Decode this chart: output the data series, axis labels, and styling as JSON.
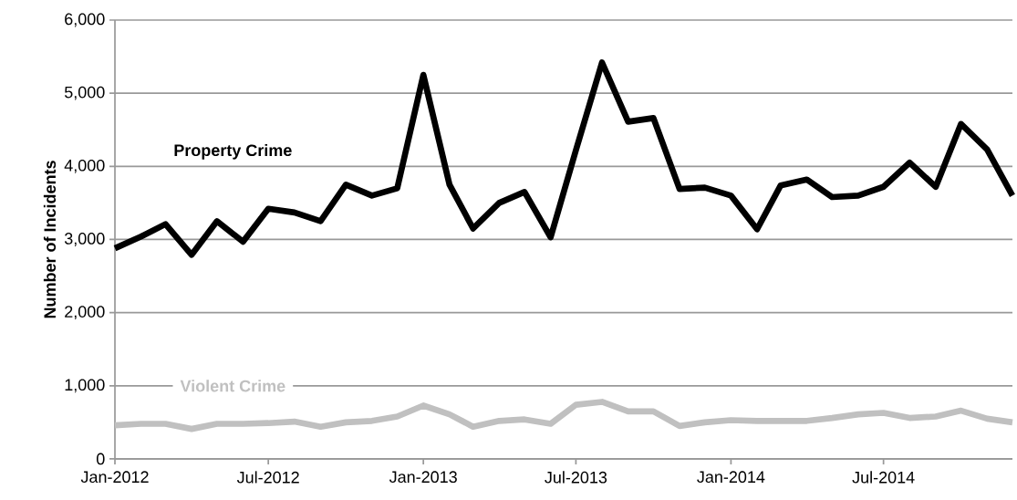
{
  "chart_data": {
    "type": "line",
    "ylabel": "Number of Incidents",
    "x": [
      "2012-01",
      "2012-02",
      "2012-03",
      "2012-04",
      "2012-05",
      "2012-06",
      "2012-07",
      "2012-08",
      "2012-09",
      "2012-10",
      "2012-11",
      "2012-12",
      "2013-01",
      "2013-02",
      "2013-03",
      "2013-04",
      "2013-05",
      "2013-06",
      "2013-07",
      "2013-08",
      "2013-09",
      "2013-10",
      "2013-11",
      "2013-12",
      "2014-01",
      "2014-02",
      "2014-03",
      "2014-04",
      "2014-05",
      "2014-06",
      "2014-07",
      "2014-08",
      "2014-09",
      "2014-10",
      "2014-11",
      "2014-12"
    ],
    "series": [
      {
        "name": "Property Crime",
        "color": "#000000",
        "values": [
          2880,
          3040,
          3210,
          2790,
          3250,
          2970,
          3420,
          3370,
          3250,
          3750,
          3600,
          3700,
          5250,
          3750,
          3150,
          3500,
          3650,
          3030,
          4220,
          5420,
          4610,
          4660,
          3690,
          3710,
          3600,
          3140,
          3740,
          3820,
          3580,
          3600,
          3720,
          4050,
          3720,
          4580,
          4230,
          3600
        ]
      },
      {
        "name": "Violent Crime",
        "color": "#c0c0c0",
        "values": [
          460,
          480,
          480,
          410,
          480,
          480,
          490,
          510,
          440,
          500,
          520,
          580,
          730,
          610,
          440,
          520,
          540,
          480,
          740,
          780,
          650,
          650,
          450,
          500,
          530,
          520,
          520,
          520,
          560,
          610,
          630,
          560,
          580,
          660,
          550,
          500
        ]
      }
    ],
    "xlim": [
      "2012-01",
      "2014-12"
    ],
    "xticks": [
      {
        "value": "2012-01",
        "label": "Jan-2012"
      },
      {
        "value": "2012-07",
        "label": "Jul-2012"
      },
      {
        "value": "2013-01",
        "label": "Jan-2013"
      },
      {
        "value": "2013-07",
        "label": "Jul-2013"
      },
      {
        "value": "2014-01",
        "label": "Jan-2014"
      },
      {
        "value": "2014-07",
        "label": "Jul-2014"
      }
    ],
    "ylim": [
      0,
      6000
    ],
    "yticks": [
      {
        "value": 0,
        "label": "0"
      },
      {
        "value": 1000,
        "label": "1,000"
      },
      {
        "value": 2000,
        "label": "2,000"
      },
      {
        "value": 3000,
        "label": "3,000"
      },
      {
        "value": 4000,
        "label": "4,000"
      },
      {
        "value": 5000,
        "label": "5,000"
      },
      {
        "value": 6000,
        "label": "6,000"
      }
    ],
    "grid": "y",
    "legend": false,
    "marker": "none",
    "line_style": "solid"
  }
}
